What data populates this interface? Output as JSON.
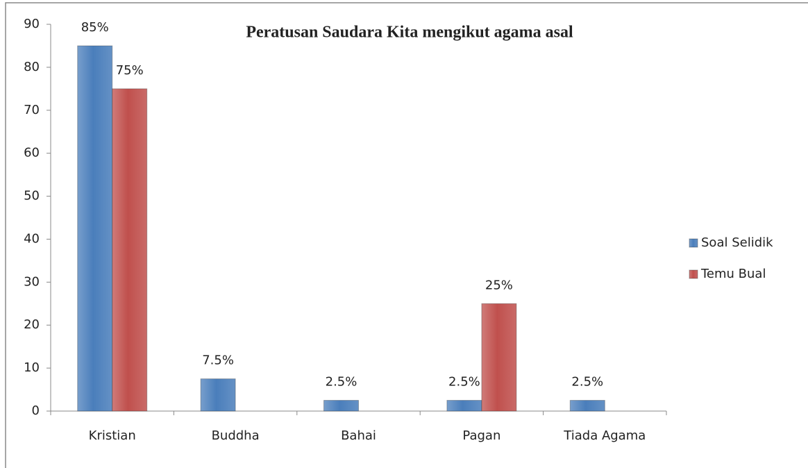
{
  "chart_data": {
    "type": "bar",
    "title": "Peratusan Saudara Kita mengikut agama asal",
    "categories": [
      "Kristian",
      "Buddha",
      "Bahai",
      "Pagan",
      "Tiada Agama"
    ],
    "series": [
      {
        "name": "Soal Selidik",
        "color": "#4a7ebb",
        "values": [
          85,
          7.5,
          2.5,
          2.5,
          2.5
        ],
        "value_labels": [
          "85%",
          "7.5%",
          "2.5%",
          "2.5%",
          "2.5%"
        ]
      },
      {
        "name": "Temu Bual",
        "color": "#c0504d",
        "values": [
          75,
          null,
          null,
          25,
          null
        ],
        "value_labels": [
          "75%",
          null,
          null,
          "25%",
          null
        ]
      }
    ],
    "ylim": [
      0,
      90
    ],
    "yticks": [
      0,
      10,
      20,
      30,
      40,
      50,
      60,
      70,
      80,
      90
    ],
    "grid": false,
    "legend": "right"
  }
}
